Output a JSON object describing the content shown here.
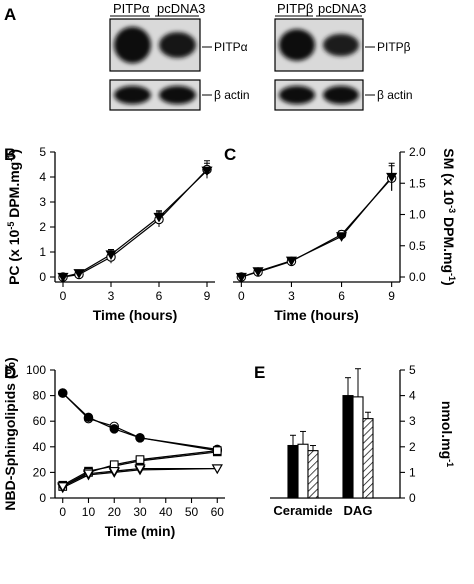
{
  "figure": {
    "panel_letters": [
      "A",
      "B",
      "C",
      "D",
      "E"
    ]
  },
  "blots": [
    {
      "columns": [
        "PITPα",
        "pcDNA3"
      ],
      "upper_label": "PITPα",
      "lower_label": "β actin",
      "upper_intensity": [
        1.0,
        0.55
      ],
      "lower_intensity": [
        0.8,
        0.8
      ]
    },
    {
      "columns": [
        "PITPβ",
        "pcDNA3"
      ],
      "upper_label": "PITPβ",
      "lower_label": "β actin",
      "upper_intensity": [
        0.8,
        0.4
      ],
      "lower_intensity": [
        0.8,
        0.8
      ]
    }
  ],
  "chart_data": [
    {
      "panel": "B",
      "type": "line",
      "xlabel": "Time (hours)",
      "ylabel": "PC (x 10-5 DPM.mg-1)",
      "ylabel_parts": {
        "main": "PC (x 10",
        "sup1": "-5",
        "mid": " DPM.mg",
        "sup2": "-1",
        "end": ")"
      },
      "xlim": [
        -0.5,
        9.5
      ],
      "ylim": [
        -0.2,
        5
      ],
      "xticks": [
        0,
        3,
        6,
        9
      ],
      "yticks": [
        0,
        1,
        2,
        3,
        4,
        5
      ],
      "grid": false,
      "series": [
        {
          "marker": "open-circle",
          "x": [
            0,
            1,
            3,
            6,
            9
          ],
          "y": [
            0.0,
            0.1,
            0.8,
            2.3,
            4.3
          ],
          "err": [
            0.1,
            0.1,
            0.25,
            0.3,
            0.35
          ]
        },
        {
          "marker": "filled-triangle-down",
          "x": [
            0,
            1,
            3,
            6,
            9
          ],
          "y": [
            0.0,
            0.15,
            0.9,
            2.4,
            4.25
          ],
          "err": [
            0.1,
            0.1,
            0.2,
            0.25,
            0.3
          ]
        }
      ]
    },
    {
      "panel": "C",
      "type": "line",
      "xlabel": "Time (hours)",
      "ylabel": "SM (x 10-3 DPM.mg-1)",
      "ylabel_parts": {
        "main": "SM (x 10",
        "sup1": "-3",
        "mid": " DPM.mg",
        "sup2": "-1",
        "end": ")"
      },
      "xlim": [
        -0.5,
        9.5
      ],
      "ylim": [
        -0.08,
        2.0
      ],
      "xticks": [
        0,
        3,
        6,
        9
      ],
      "yticks": [
        0.0,
        0.5,
        1.0,
        1.5,
        2.0
      ],
      "ytick_labels": [
        "0.0",
        "0.5",
        "1.0",
        "1.5",
        "2.0"
      ],
      "grid": false,
      "series": [
        {
          "marker": "open-circle",
          "x": [
            0,
            1,
            3,
            6,
            9
          ],
          "y": [
            0.0,
            0.08,
            0.25,
            0.68,
            1.58
          ],
          "err": [
            0.02,
            0.02,
            0.04,
            0.06,
            0.2
          ]
        },
        {
          "marker": "filled-triangle-down",
          "x": [
            0,
            1,
            3,
            6,
            9
          ],
          "y": [
            0.0,
            0.09,
            0.26,
            0.65,
            1.6
          ],
          "err": [
            0.02,
            0.02,
            0.03,
            0.05,
            0.22
          ]
        }
      ]
    },
    {
      "panel": "D",
      "type": "line",
      "xlabel": "Time (min)",
      "ylabel": "NBD-Sphingolipids (%)",
      "xlim": [
        -3,
        63
      ],
      "ylim": [
        0,
        100
      ],
      "xticks": [
        0,
        10,
        20,
        30,
        40,
        50,
        60
      ],
      "yticks": [
        0,
        20,
        40,
        60,
        80,
        100
      ],
      "grid": false,
      "series": [
        {
          "marker": "open-circle",
          "x": [
            0,
            10,
            20,
            30,
            60
          ],
          "y": [
            82,
            62,
            56,
            47,
            37
          ]
        },
        {
          "marker": "filled-circle",
          "x": [
            0,
            10,
            20,
            30,
            60
          ],
          "y": [
            82,
            63,
            54,
            47,
            38
          ]
        },
        {
          "marker": "filled-square",
          "x": [
            0,
            10,
            20,
            30,
            60
          ],
          "y": [
            10,
            21,
            25,
            29,
            36
          ]
        },
        {
          "marker": "open-square",
          "x": [
            0,
            10,
            20,
            30,
            60
          ],
          "y": [
            9,
            20,
            26,
            30,
            37
          ]
        },
        {
          "marker": "filled-triangle-down",
          "x": [
            0,
            10,
            20,
            30,
            60
          ],
          "y": [
            8,
            18,
            20,
            22,
            23
          ]
        },
        {
          "marker": "open-triangle-down",
          "x": [
            0,
            10,
            20,
            30,
            60
          ],
          "y": [
            9,
            19,
            21,
            23,
            23
          ]
        }
      ]
    },
    {
      "panel": "E",
      "type": "bar",
      "ylabel": "nmol.mg-1",
      "ylabel_parts": {
        "main": "nmol.mg",
        "sup1": "-1"
      },
      "categories": [
        "Ceramide",
        "DAG"
      ],
      "ylim": [
        0,
        5
      ],
      "yticks": [
        0,
        1,
        2,
        3,
        4,
        5
      ],
      "y_axis_side": "right",
      "grid": false,
      "series": [
        {
          "fill": "black",
          "values": [
            2.05,
            4.0
          ],
          "err": [
            0.4,
            0.7
          ]
        },
        {
          "fill": "white",
          "values": [
            2.1,
            3.95
          ],
          "err": [
            0.5,
            1.1
          ]
        },
        {
          "fill": "hatched",
          "values": [
            1.85,
            3.1
          ],
          "err": [
            0.2,
            0.25
          ]
        }
      ]
    }
  ]
}
